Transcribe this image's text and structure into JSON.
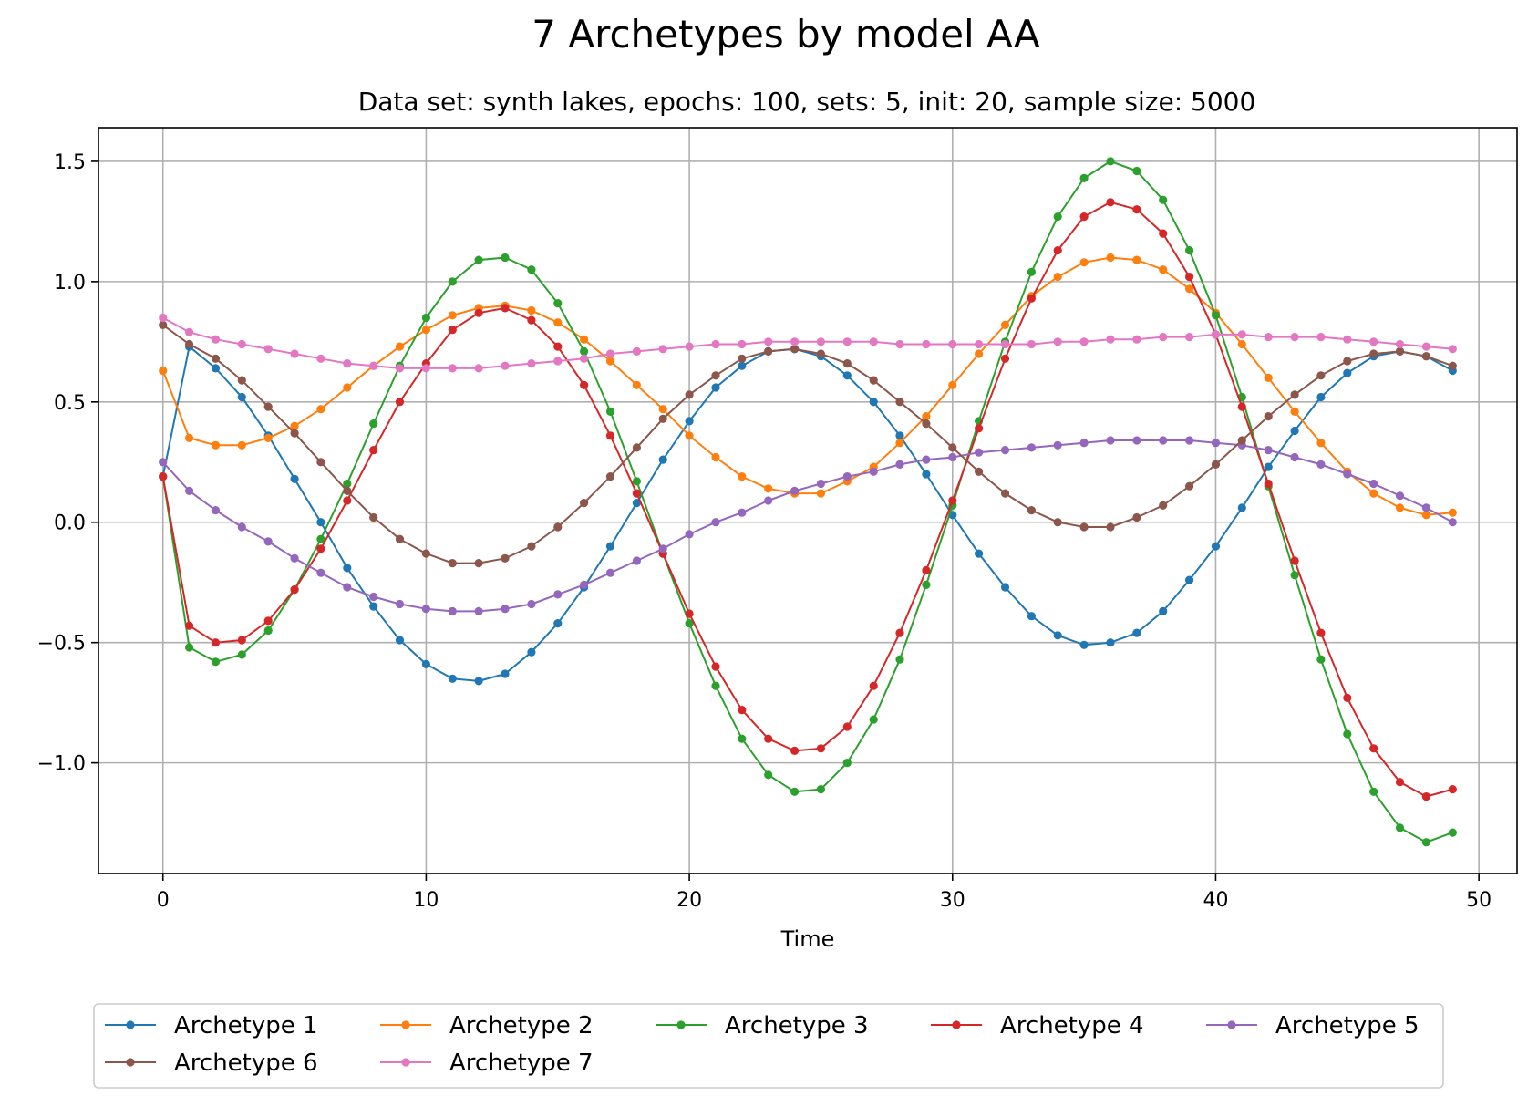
{
  "chart_data": {
    "type": "line",
    "title": "7 Archetypes by model AA",
    "subtitle": "Data set: synth lakes, epochs: 100, sets: 5, init: 20, sample size: 5000",
    "xlabel": "Time",
    "ylabel": "",
    "xlim": [
      -2.45,
      51.45
    ],
    "ylim": [
      -1.46,
      1.64
    ],
    "xticks": [
      0,
      10,
      20,
      30,
      40,
      50
    ],
    "xtick_labels": [
      "0",
      "10",
      "20",
      "30",
      "40",
      "50"
    ],
    "yticks": [
      1.5,
      1.0,
      0.5,
      0.0,
      -0.5,
      -1.0
    ],
    "ytick_labels": [
      "1.5",
      "1.0",
      "0.5",
      "0.0",
      "−0.5",
      "−1.0"
    ],
    "grid": true,
    "legend_position": "bottom-center",
    "legend_columns": 5,
    "x": [
      0,
      1,
      2,
      3,
      4,
      5,
      6,
      7,
      8,
      9,
      10,
      11,
      12,
      13,
      14,
      15,
      16,
      17,
      18,
      19,
      20,
      21,
      22,
      23,
      24,
      25,
      26,
      27,
      28,
      29,
      30,
      31,
      32,
      33,
      34,
      35,
      36,
      37,
      38,
      39,
      40,
      41,
      42,
      43,
      44,
      45,
      46,
      47,
      48,
      49
    ],
    "series": [
      {
        "name": "Archetype 1",
        "color": "#1f77b4",
        "values": [
          0.19,
          0.73,
          0.64,
          0.52,
          0.36,
          0.18,
          0.0,
          -0.19,
          -0.35,
          -0.49,
          -0.59,
          -0.65,
          -0.66,
          -0.63,
          -0.54,
          -0.42,
          -0.27,
          -0.1,
          0.08,
          0.26,
          0.42,
          0.56,
          0.65,
          0.71,
          0.72,
          0.69,
          0.61,
          0.5,
          0.36,
          0.2,
          0.03,
          -0.13,
          -0.27,
          -0.39,
          -0.47,
          -0.51,
          -0.5,
          -0.46,
          -0.37,
          -0.24,
          -0.1,
          0.06,
          0.23,
          0.38,
          0.52,
          0.62,
          0.69,
          0.71,
          0.69,
          0.63
        ]
      },
      {
        "name": "Archetype 2",
        "color": "#ff7f0e",
        "values": [
          0.63,
          0.35,
          0.32,
          0.32,
          0.35,
          0.4,
          0.47,
          0.56,
          0.65,
          0.73,
          0.8,
          0.86,
          0.89,
          0.9,
          0.88,
          0.83,
          0.76,
          0.67,
          0.57,
          0.47,
          0.36,
          0.27,
          0.19,
          0.14,
          0.12,
          0.12,
          0.17,
          0.23,
          0.33,
          0.44,
          0.57,
          0.7,
          0.82,
          0.94,
          1.02,
          1.08,
          1.1,
          1.09,
          1.05,
          0.97,
          0.87,
          0.74,
          0.6,
          0.46,
          0.33,
          0.21,
          0.12,
          0.06,
          0.03,
          0.04
        ]
      },
      {
        "name": "Archetype 3",
        "color": "#2ca02c",
        "values": [
          0.19,
          -0.52,
          -0.58,
          -0.55,
          -0.45,
          -0.28,
          -0.07,
          0.16,
          0.41,
          0.65,
          0.85,
          1.0,
          1.09,
          1.1,
          1.05,
          0.91,
          0.71,
          0.46,
          0.17,
          -0.13,
          -0.42,
          -0.68,
          -0.9,
          -1.05,
          -1.12,
          -1.11,
          -1.0,
          -0.82,
          -0.57,
          -0.26,
          0.07,
          0.42,
          0.75,
          1.04,
          1.27,
          1.43,
          1.5,
          1.46,
          1.34,
          1.13,
          0.86,
          0.52,
          0.15,
          -0.22,
          -0.57,
          -0.88,
          -1.12,
          -1.27,
          -1.33,
          -1.29
        ]
      },
      {
        "name": "Archetype 4",
        "color": "#d62728",
        "values": [
          0.19,
          -0.43,
          -0.5,
          -0.49,
          -0.41,
          -0.28,
          -0.11,
          0.09,
          0.3,
          0.5,
          0.66,
          0.8,
          0.87,
          0.89,
          0.84,
          0.73,
          0.57,
          0.36,
          0.12,
          -0.13,
          -0.38,
          -0.6,
          -0.78,
          -0.9,
          -0.95,
          -0.94,
          -0.85,
          -0.68,
          -0.46,
          -0.2,
          0.09,
          0.39,
          0.68,
          0.93,
          1.13,
          1.27,
          1.33,
          1.3,
          1.2,
          1.02,
          0.78,
          0.48,
          0.16,
          -0.16,
          -0.46,
          -0.73,
          -0.94,
          -1.08,
          -1.14,
          -1.11
        ]
      },
      {
        "name": "Archetype 5",
        "color": "#9467bd",
        "values": [
          0.25,
          0.13,
          0.05,
          -0.02,
          -0.08,
          -0.15,
          -0.21,
          -0.27,
          -0.31,
          -0.34,
          -0.36,
          -0.37,
          -0.37,
          -0.36,
          -0.34,
          -0.3,
          -0.26,
          -0.21,
          -0.16,
          -0.11,
          -0.05,
          0.0,
          0.04,
          0.09,
          0.13,
          0.16,
          0.19,
          0.21,
          0.24,
          0.26,
          0.27,
          0.29,
          0.3,
          0.31,
          0.32,
          0.33,
          0.34,
          0.34,
          0.34,
          0.34,
          0.33,
          0.32,
          0.3,
          0.27,
          0.24,
          0.2,
          0.16,
          0.11,
          0.06,
          0.0
        ]
      },
      {
        "name": "Archetype 6",
        "color": "#8c564b",
        "values": [
          0.82,
          0.74,
          0.68,
          0.59,
          0.48,
          0.37,
          0.25,
          0.13,
          0.02,
          -0.07,
          -0.13,
          -0.17,
          -0.17,
          -0.15,
          -0.1,
          -0.02,
          0.08,
          0.19,
          0.31,
          0.43,
          0.53,
          0.61,
          0.68,
          0.71,
          0.72,
          0.7,
          0.66,
          0.59,
          0.5,
          0.41,
          0.31,
          0.21,
          0.12,
          0.05,
          0.0,
          -0.02,
          -0.02,
          0.02,
          0.07,
          0.15,
          0.24,
          0.34,
          0.44,
          0.53,
          0.61,
          0.67,
          0.7,
          0.71,
          0.69,
          0.65
        ]
      },
      {
        "name": "Archetype 7",
        "color": "#e377c2",
        "values": [
          0.85,
          0.79,
          0.76,
          0.74,
          0.72,
          0.7,
          0.68,
          0.66,
          0.65,
          0.64,
          0.64,
          0.64,
          0.64,
          0.65,
          0.66,
          0.67,
          0.68,
          0.7,
          0.71,
          0.72,
          0.73,
          0.74,
          0.74,
          0.75,
          0.75,
          0.75,
          0.75,
          0.75,
          0.74,
          0.74,
          0.74,
          0.74,
          0.74,
          0.74,
          0.75,
          0.75,
          0.76,
          0.76,
          0.77,
          0.77,
          0.78,
          0.78,
          0.77,
          0.77,
          0.77,
          0.76,
          0.75,
          0.74,
          0.73,
          0.72
        ]
      }
    ]
  }
}
